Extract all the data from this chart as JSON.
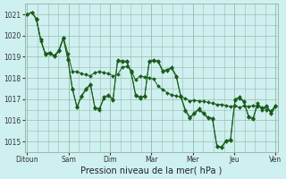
{
  "background_color": "#cff0f0",
  "grid_color": "#99bbaa",
  "line_color": "#1a5c1a",
  "marker_color": "#1a5c1a",
  "xlabel": "Pression niveau de la mer( hPa )",
  "ylim": [
    1014.5,
    1021.5
  ],
  "yticks": [
    1015,
    1016,
    1017,
    1018,
    1019,
    1020,
    1021
  ],
  "x_day_labels": [
    "Ditoun",
    "Sam",
    "Dim",
    "Mar",
    "Mer",
    "Jeu",
    "Ven"
  ],
  "x_day_positions": [
    0,
    8,
    16,
    24,
    32,
    40,
    48
  ],
  "n_points": 56,
  "series1": [
    1021.0,
    1021.1,
    1020.8,
    1019.8,
    1019.15,
    1019.2,
    1019.05,
    1019.3,
    1019.9,
    1019.15,
    1018.3,
    1018.3,
    1018.2,
    1018.15,
    1018.1,
    1018.25,
    1018.3,
    1018.25,
    1018.2,
    1018.1,
    1018.15,
    1018.5,
    1018.55,
    1018.35,
    1017.9,
    1018.1,
    1018.05,
    1018.0,
    1017.95,
    1017.6,
    1017.45,
    1017.3,
    1017.2,
    1017.15,
    1017.1,
    1017.05,
    1016.9,
    1016.95,
    1016.9,
    1016.9,
    1016.85,
    1016.8,
    1016.75,
    1016.75,
    1016.7,
    1016.65,
    1016.7,
    1016.6,
    1016.7,
    1016.65,
    1016.7,
    1016.65,
    1016.6,
    1016.5,
    1016.45,
    1016.7
  ],
  "series2": [
    1021.0,
    1021.1,
    1020.8,
    1019.8,
    1019.15,
    1019.2,
    1019.05,
    1019.3,
    1019.9,
    1018.9,
    1017.5,
    1016.65,
    1017.15,
    1017.5,
    1017.7,
    1016.6,
    1016.55,
    1017.1,
    1017.2,
    1017.0,
    1018.85,
    1018.8,
    1018.8,
    1018.3,
    1017.2,
    1017.1,
    1017.15,
    1018.8,
    1018.85,
    1018.8,
    1018.35,
    1018.4,
    1018.5,
    1018.1,
    1017.15,
    1016.5,
    1016.15,
    1016.35,
    1016.55,
    1016.35,
    1016.15,
    1016.1,
    1014.8,
    1014.75,
    1015.05,
    1015.1,
    1017.0,
    1017.1,
    1016.9,
    1016.2,
    1016.1,
    1016.8,
    1016.55,
    1016.7,
    1016.35,
    1016.7
  ],
  "series3": [
    1021.0,
    1021.1,
    1020.75,
    1019.75,
    1019.1,
    1019.15,
    1019.0,
    1019.25,
    1019.85,
    1018.85,
    1017.45,
    1016.6,
    1017.1,
    1017.45,
    1017.65,
    1016.55,
    1016.5,
    1017.05,
    1017.15,
    1016.95,
    1018.8,
    1018.75,
    1018.75,
    1018.25,
    1017.15,
    1017.05,
    1017.1,
    1018.75,
    1018.8,
    1018.75,
    1018.3,
    1018.35,
    1018.45,
    1018.05,
    1017.1,
    1016.45,
    1016.1,
    1016.3,
    1016.5,
    1016.3,
    1016.1,
    1016.05,
    1014.75,
    1014.7,
    1015.0,
    1015.05,
    1016.95,
    1017.05,
    1016.85,
    1016.15,
    1016.05,
    1016.75,
    1016.5,
    1016.65,
    1016.3,
    1016.65
  ]
}
